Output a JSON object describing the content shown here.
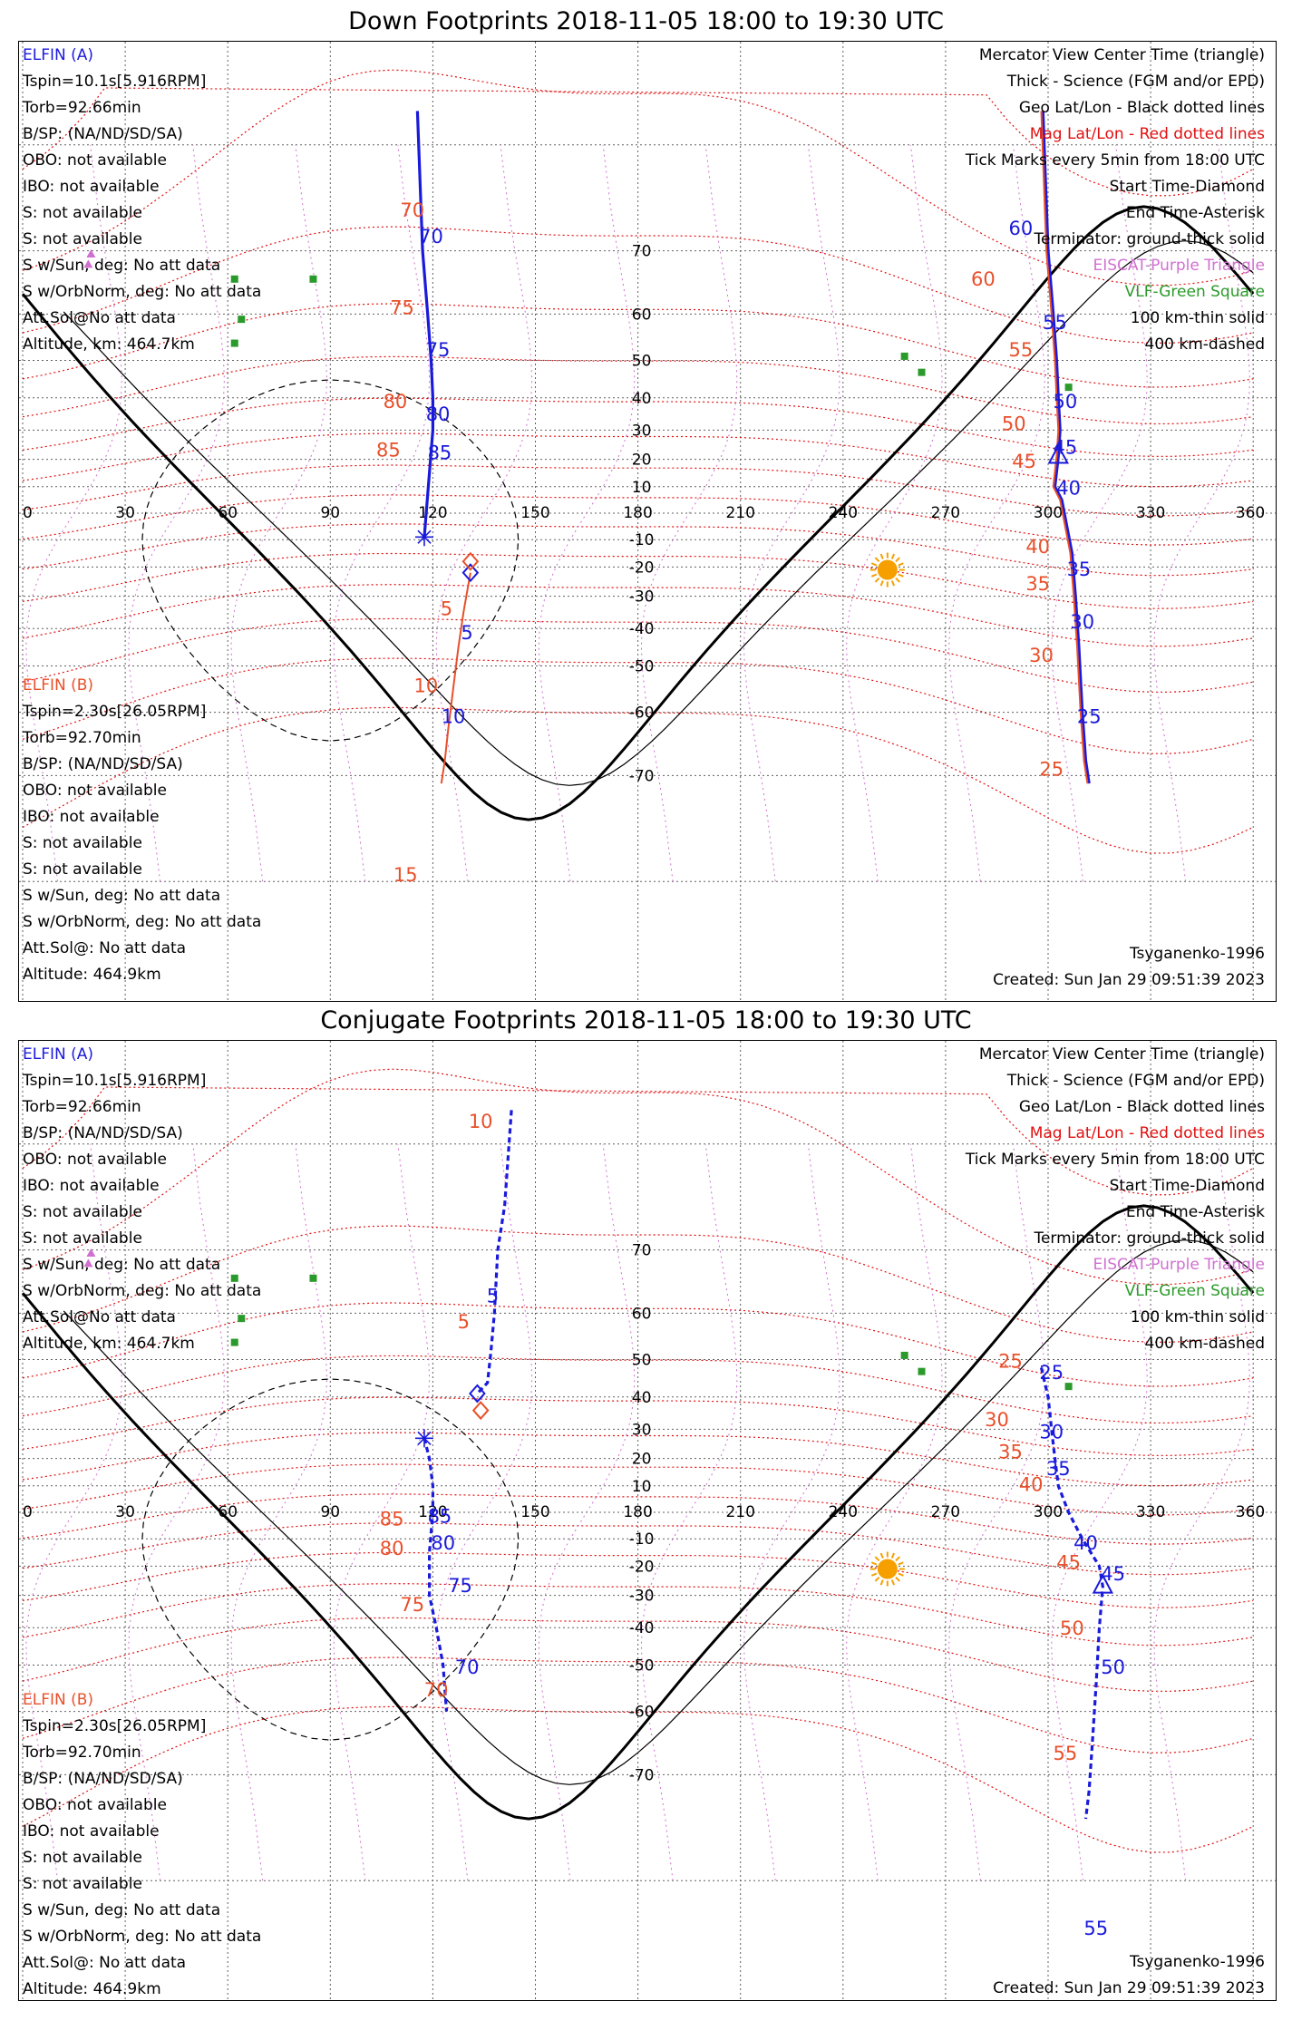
{
  "colors": {
    "elfin_a": "#1a1adb",
    "elfin_b": "#e8502a",
    "mag_lines": "#e01010",
    "eiscat": "#d070d0",
    "vlf": "#2a9a2a",
    "sun": "#f5a000",
    "grid": "#606060"
  },
  "legend": [
    {
      "text": "Mercator View Center Time (triangle)",
      "color": "#000000"
    },
    {
      "text": "Thick - Science (FGM and/or EPD)",
      "color": "#000000"
    },
    {
      "text": "Geo Lat/Lon - Black dotted lines",
      "color": "#000000"
    },
    {
      "text": "Mag Lat/Lon - Red dotted lines",
      "color": "#e01010"
    },
    {
      "text": "Tick Marks every 5min from 18:00 UTC",
      "color": "#000000"
    },
    {
      "text": "Start Time-Diamond",
      "color": "#000000"
    },
    {
      "text": "End Time-Asterisk",
      "color": "#000000"
    },
    {
      "text": "Terminator: ground-thick solid",
      "color": "#000000"
    },
    {
      "text": "EISCAT-Purple Triangle",
      "color": "#d070d0"
    },
    {
      "text": "VLF-Green Square",
      "color": "#2a9a2a"
    },
    {
      "text": "100 km-thin solid",
      "color": "#000000"
    },
    {
      "text": "400 km-dashed",
      "color": "#000000"
    }
  ],
  "elfin_a_info": {
    "name": "ELFIN (A)",
    "lines": [
      "Tspin=10.1s[5.916RPM]",
      "Torb=92.66min",
      "B/SP: (NA/ND/SD/SA)",
      "OBO: not available",
      "IBO: not available",
      "S: not available",
      "S: not available",
      "S w/Sun, deg: No att data",
      "S w/OrbNorm, deg: No att data",
      "Att.Sol@No att data",
      "Altitude, km: 464.7km"
    ]
  },
  "elfin_b_info": {
    "name": "ELFIN (B)",
    "lines": [
      "Tspin=2.30s[26.05RPM]",
      "Torb=92.70min",
      "B/SP: (NA/ND/SD/SA)",
      "OBO: not available",
      "IBO: not available",
      "S: not available",
      "S: not available",
      "S w/Sun, deg: No att data",
      "S w/OrbNorm, deg: No att data",
      "Att.Sol@: No att data",
      "Altitude: 464.9km"
    ]
  },
  "footer": {
    "model": "Tsyganenko-1996",
    "created": "Created: Sun Jan 29 09:51:39 2023"
  },
  "axes": {
    "lon_ticks": [
      "0",
      "30",
      "60",
      "90",
      "120",
      "150",
      "180",
      "210",
      "240",
      "270",
      "300",
      "330",
      "360"
    ],
    "lat_ticks": [
      "70",
      "60",
      "50",
      "40",
      "30",
      "20",
      "10",
      "-10",
      "-20",
      "-30",
      "-40",
      "-50",
      "-60",
      "-70"
    ]
  },
  "panels": [
    {
      "title": "Down Footprints 2018-11-05 18:00 to 19:30 UTC",
      "tracks": [
        {
          "id": "elfin-a-east",
          "sat": "A",
          "points": [
            [
              115.5,
              82
            ],
            [
              117,
              70
            ],
            [
              118.5,
              60
            ],
            [
              119.5,
              50
            ],
            [
              120,
              40
            ],
            [
              120,
              30
            ],
            [
              119,
              15
            ],
            [
              117.5,
              -9
            ]
          ]
        },
        {
          "id": "elfin-a-west",
          "sat": "A",
          "points": [
            [
              298.5,
              82
            ],
            [
              300,
              70
            ],
            [
              301.5,
              60
            ],
            [
              302.5,
              50
            ],
            [
              303,
              40
            ],
            [
              303.5,
              30
            ],
            [
              303,
              21
            ],
            [
              302,
              10
            ],
            [
              304,
              5
            ],
            [
              307,
              -15
            ],
            [
              308,
              -30
            ],
            [
              309,
              -45
            ],
            [
              310,
              -60
            ],
            [
              311,
              -68
            ],
            [
              312,
              -71
            ]
          ]
        },
        {
          "id": "elfin-b-east",
          "sat": "B",
          "points": [
            [
              131,
              -22
            ],
            [
              129,
              -35
            ],
            [
              127.5,
              -45
            ],
            [
              126,
              -55
            ],
            [
              124.5,
              -63
            ],
            [
              123.5,
              -68
            ],
            [
              122.5,
              -71
            ]
          ]
        },
        {
          "id": "elfin-b-west",
          "sat": "B",
          "points": [
            [
              298,
              82
            ],
            [
              299.5,
              70
            ],
            [
              301,
              60
            ],
            [
              302,
              50
            ],
            [
              302.5,
              40
            ],
            [
              303,
              30
            ],
            [
              302.5,
              21
            ],
            [
              301.5,
              10
            ],
            [
              303.5,
              5
            ],
            [
              306.5,
              -15
            ],
            [
              307.5,
              -30
            ],
            [
              308.5,
              -45
            ],
            [
              309.5,
              -60
            ],
            [
              310.5,
              -68
            ],
            [
              311.5,
              -71
            ]
          ]
        }
      ],
      "dashed_tracks": false,
      "start_a": [
        131,
        -22
      ],
      "start_b": [
        131,
        -18
      ],
      "end": [
        117.5,
        -9
      ],
      "center": [
        303,
        21
      ],
      "tick_labels": [
        {
          "text": "70",
          "sat": "B",
          "lon": 114,
          "lat": 74
        },
        {
          "text": "70",
          "sat": "A",
          "lon": 119.5,
          "lat": 71
        },
        {
          "text": "75",
          "sat": "B",
          "lon": 111,
          "lat": 60
        },
        {
          "text": "75",
          "sat": "A",
          "lon": 121.5,
          "lat": 51
        },
        {
          "text": "80",
          "sat": "B",
          "lon": 109,
          "lat": 37
        },
        {
          "text": "80",
          "sat": "A",
          "lon": 121.5,
          "lat": 33
        },
        {
          "text": "85",
          "sat": "B",
          "lon": 107,
          "lat": 21
        },
        {
          "text": "85",
          "sat": "A",
          "lon": 122,
          "lat": 20
        },
        {
          "text": "60",
          "sat": "B",
          "lon": 281,
          "lat": 65
        },
        {
          "text": "60",
          "sat": "A",
          "lon": 292,
          "lat": 72
        },
        {
          "text": "55",
          "sat": "A",
          "lon": 302,
          "lat": 57
        },
        {
          "text": "55",
          "sat": "B",
          "lon": 292,
          "lat": 51
        },
        {
          "text": "50",
          "sat": "A",
          "lon": 305,
          "lat": 37
        },
        {
          "text": "50",
          "sat": "B",
          "lon": 290,
          "lat": 30
        },
        {
          "text": "45",
          "sat": "A",
          "lon": 305,
          "lat": 22
        },
        {
          "text": "45",
          "sat": "B",
          "lon": 293,
          "lat": 17
        },
        {
          "text": "40",
          "sat": "A",
          "lon": 306,
          "lat": 7
        },
        {
          "text": "40",
          "sat": "B",
          "lon": 297,
          "lat": -15
        },
        {
          "text": "35",
          "sat": "A",
          "lon": 309,
          "lat": -23
        },
        {
          "text": "35",
          "sat": "B",
          "lon": 297,
          "lat": -28
        },
        {
          "text": "30",
          "sat": "A",
          "lon": 310,
          "lat": -40
        },
        {
          "text": "30",
          "sat": "B",
          "lon": 298,
          "lat": -49
        },
        {
          "text": "25",
          "sat": "A",
          "lon": 312,
          "lat": -62
        },
        {
          "text": "25",
          "sat": "B",
          "lon": 301,
          "lat": -70
        },
        {
          "text": "5",
          "sat": "B",
          "lon": 124,
          "lat": -36
        },
        {
          "text": "5",
          "sat": "A",
          "lon": 130,
          "lat": -43
        },
        {
          "text": "10",
          "sat": "B",
          "lon": 118,
          "lat": -56
        },
        {
          "text": "10",
          "sat": "A",
          "lon": 126,
          "lat": -62
        },
        {
          "text": "15",
          "sat": "B",
          "lon": 112,
          "lat": -80
        }
      ]
    },
    {
      "title": "Conjugate Footprints 2018-11-05 18:00 to 19:30 UTC",
      "tracks": [
        {
          "id": "elfin-a-east",
          "sat": "A",
          "points": [
            [
              143,
              82
            ],
            [
              141,
              75
            ],
            [
              139,
              70
            ],
            [
              138,
              60
            ],
            [
              137,
              52
            ],
            [
              136,
              44
            ],
            [
              133,
              41
            ]
          ]
        },
        {
          "id": "elfin-a-lower",
          "sat": "A",
          "points": [
            [
              117.5,
              27
            ],
            [
              119,
              20
            ],
            [
              120,
              10
            ],
            [
              120,
              0
            ],
            [
              119,
              -15
            ],
            [
              119,
              -30
            ],
            [
              121,
              -40
            ],
            [
              123,
              -50
            ],
            [
              124,
              -60
            ]
          ]
        },
        {
          "id": "elfin-a-west",
          "sat": "A",
          "points": [
            [
              298,
              48
            ],
            [
              300,
              40
            ],
            [
              301,
              30
            ],
            [
              302,
              20
            ],
            [
              303,
              10
            ],
            [
              306,
              0
            ],
            [
              310,
              -10
            ],
            [
              315,
              -20
            ],
            [
              316,
              -27
            ],
            [
              315,
              -40
            ],
            [
              314,
              -55
            ],
            [
              313,
              -65
            ],
            [
              312,
              -72
            ],
            [
              311,
              -75
            ]
          ]
        }
      ],
      "dashed_tracks": true,
      "start_a": [
        133,
        41
      ],
      "start_b": [
        134,
        36
      ],
      "end": [
        117.5,
        27
      ],
      "center": [
        316,
        -27
      ],
      "tick_labels": [
        {
          "text": "10",
          "sat": "B",
          "lon": 134,
          "lat": 81
        },
        {
          "text": "5",
          "sat": "A",
          "lon": 137.5,
          "lat": 62
        },
        {
          "text": "5",
          "sat": "B",
          "lon": 129,
          "lat": 57
        },
        {
          "text": "85",
          "sat": "B",
          "lon": 108,
          "lat": -5
        },
        {
          "text": "85",
          "sat": "A",
          "lon": 122,
          "lat": -4
        },
        {
          "text": "80",
          "sat": "B",
          "lon": 108,
          "lat": -16
        },
        {
          "text": "80",
          "sat": "A",
          "lon": 123,
          "lat": -14
        },
        {
          "text": "75",
          "sat": "A",
          "lon": 128,
          "lat": -29
        },
        {
          "text": "75",
          "sat": "B",
          "lon": 114,
          "lat": -35
        },
        {
          "text": "70",
          "sat": "A",
          "lon": 130,
          "lat": -52
        },
        {
          "text": "70",
          "sat": "B",
          "lon": 121,
          "lat": -57
        },
        {
          "text": "25",
          "sat": "B",
          "lon": 289,
          "lat": 48
        },
        {
          "text": "25",
          "sat": "A",
          "lon": 301,
          "lat": 45
        },
        {
          "text": "30",
          "sat": "B",
          "lon": 285,
          "lat": 31
        },
        {
          "text": "30",
          "sat": "A",
          "lon": 301,
          "lat": 27
        },
        {
          "text": "35",
          "sat": "B",
          "lon": 289,
          "lat": 20
        },
        {
          "text": "35",
          "sat": "A",
          "lon": 303,
          "lat": 14
        },
        {
          "text": "40",
          "sat": "B",
          "lon": 295,
          "lat": 8
        },
        {
          "text": "40",
          "sat": "A",
          "lon": 311,
          "lat": -14
        },
        {
          "text": "45",
          "sat": "B",
          "lon": 306,
          "lat": -21
        },
        {
          "text": "45",
          "sat": "A",
          "lon": 319,
          "lat": -25
        },
        {
          "text": "50",
          "sat": "B",
          "lon": 307,
          "lat": -42
        },
        {
          "text": "50",
          "sat": "A",
          "lon": 319,
          "lat": -52
        },
        {
          "text": "55",
          "sat": "B",
          "lon": 305,
          "lat": -68
        },
        {
          "text": "55",
          "sat": "A",
          "lon": 314,
          "lat": -83
        }
      ]
    }
  ],
  "eiscat": [
    [
      20,
      69.6
    ],
    [
      19.2,
      68.2
    ]
  ],
  "vlf_sites": [
    [
      85,
      66
    ],
    [
      62,
      66
    ],
    [
      64,
      59
    ],
    [
      62,
      54
    ],
    [
      258,
      51
    ],
    [
      263,
      47
    ],
    [
      306,
      43
    ]
  ],
  "sun": [
    253,
    -21
  ]
}
